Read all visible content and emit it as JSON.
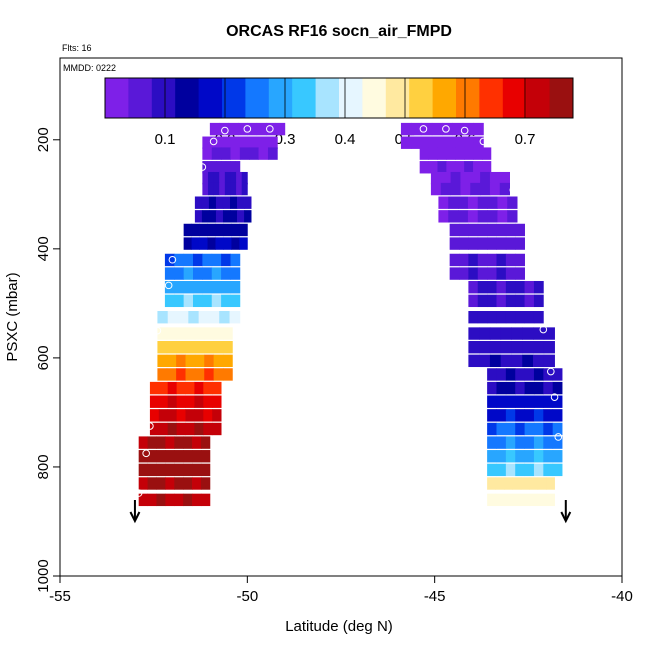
{
  "chart_data": {
    "type": "heatmap",
    "title": "ORCAS RF16 socn_air_FMPD",
    "annotations": {
      "flights": "Flts: 16",
      "date": "MMDD: 0222"
    },
    "xlabel": "Latitude (deg N)",
    "ylabel": "PSXC (mbar)",
    "xlim": [
      -55,
      -40
    ],
    "ylim": [
      1000,
      50
    ],
    "x_ticks": [
      -55,
      -50,
      -45,
      -40
    ],
    "x_tick_labels": [
      "-55",
      "-50",
      "-45",
      "-40"
    ],
    "y_ticks": [
      200,
      400,
      600,
      800,
      1000
    ],
    "y_tick_labels": [
      "200",
      "400",
      "600",
      "800",
      "1000"
    ],
    "colorbar": {
      "range": [
        0,
        0.78
      ],
      "ticks": [
        0.1,
        0.2,
        0.3,
        0.4,
        0.5,
        0.6,
        0.7
      ],
      "tick_labels": [
        "0.1",
        "0.2",
        "0.3",
        "0.4",
        "0.5",
        "0.6",
        "0.7"
      ],
      "colors": [
        "#7e20e8",
        "#5a18d8",
        "#2c0dc3",
        "#00009e",
        "#0008c8",
        "#0038e8",
        "#1478ff",
        "#28a6ff",
        "#38c8ff",
        "#a8e4ff",
        "#e6f6ff",
        "#fffbe0",
        "#ffe9a0",
        "#ffd040",
        "#ffa800",
        "#ff7a00",
        "#ff3000",
        "#e80000",
        "#c40008",
        "#9a1010"
      ]
    },
    "profiles": [
      {
        "name": "southbound profile",
        "bins": [
          {
            "p": 180,
            "lat_min": -51.0,
            "lat_max": -49.0,
            "v": 0.02
          },
          {
            "p": 205,
            "lat_min": -51.2,
            "lat_max": -49.2,
            "v": 0.02
          },
          {
            "p": 225,
            "lat_min": -51.2,
            "lat_max": -49.2,
            "v": 0.05
          },
          {
            "p": 250,
            "lat_min": -51.2,
            "lat_max": -50.2,
            "v": 0.06
          },
          {
            "p": 270,
            "lat_min": -51.2,
            "lat_max": -50.0,
            "v": 0.08
          },
          {
            "p": 290,
            "lat_min": -51.2,
            "lat_max": -50.0,
            "v": 0.09
          },
          {
            "p": 315,
            "lat_min": -51.4,
            "lat_max": -49.9,
            "v": 0.11
          },
          {
            "p": 340,
            "lat_min": -51.4,
            "lat_max": -49.9,
            "v": 0.12
          },
          {
            "p": 365,
            "lat_min": -51.7,
            "lat_max": -50.0,
            "v": 0.14
          },
          {
            "p": 390,
            "lat_min": -51.7,
            "lat_max": -50.0,
            "v": 0.16
          },
          {
            "p": 420,
            "lat_min": -52.2,
            "lat_max": -50.2,
            "v": 0.24
          },
          {
            "p": 445,
            "lat_min": -52.2,
            "lat_max": -50.2,
            "v": 0.27
          },
          {
            "p": 470,
            "lat_min": -52.2,
            "lat_max": -50.2,
            "v": 0.3
          },
          {
            "p": 495,
            "lat_min": -52.2,
            "lat_max": -50.2,
            "v": 0.35
          },
          {
            "p": 525,
            "lat_min": -52.4,
            "lat_max": -50.2,
            "v": 0.39
          },
          {
            "p": 555,
            "lat_min": -52.4,
            "lat_max": -50.4,
            "v": 0.45
          },
          {
            "p": 580,
            "lat_min": -52.4,
            "lat_max": -50.4,
            "v": 0.52
          },
          {
            "p": 605,
            "lat_min": -52.4,
            "lat_max": -50.4,
            "v": 0.58
          },
          {
            "p": 630,
            "lat_min": -52.4,
            "lat_max": -50.4,
            "v": 0.62
          },
          {
            "p": 655,
            "lat_min": -52.6,
            "lat_max": -50.7,
            "v": 0.66
          },
          {
            "p": 680,
            "lat_min": -52.6,
            "lat_max": -50.7,
            "v": 0.69
          },
          {
            "p": 705,
            "lat_min": -52.6,
            "lat_max": -50.7,
            "v": 0.71
          },
          {
            "p": 730,
            "lat_min": -52.6,
            "lat_max": -50.7,
            "v": 0.73
          },
          {
            "p": 755,
            "lat_min": -52.9,
            "lat_max": -51.0,
            "v": 0.75
          },
          {
            "p": 780,
            "lat_min": -52.9,
            "lat_max": -51.0,
            "v": 0.76
          },
          {
            "p": 805,
            "lat_min": -52.9,
            "lat_max": -51.0,
            "v": 0.76
          },
          {
            "p": 830,
            "lat_min": -52.9,
            "lat_max": -51.0,
            "v": 0.75
          },
          {
            "p": 860,
            "lat_min": -52.9,
            "lat_max": -51.0,
            "v": 0.74
          }
        ],
        "points": [
          {
            "lat": -50.6,
            "p": 183
          },
          {
            "lat": -50.0,
            "p": 180
          },
          {
            "lat": -49.4,
            "p": 180
          },
          {
            "lat": -50.9,
            "p": 203
          },
          {
            "lat": -51.2,
            "p": 250
          },
          {
            "lat": -52.0,
            "p": 420
          },
          {
            "lat": -52.1,
            "p": 467
          },
          {
            "lat": -52.4,
            "p": 550
          },
          {
            "lat": -52.6,
            "p": 725
          },
          {
            "lat": -52.7,
            "p": 775
          },
          {
            "lat": -52.9,
            "p": 848
          }
        ]
      },
      {
        "name": "northbound profile",
        "bins": [
          {
            "p": 180,
            "lat_min": -45.9,
            "lat_max": -43.7,
            "v": 0.02
          },
          {
            "p": 205,
            "lat_min": -45.9,
            "lat_max": -43.7,
            "v": 0.02
          },
          {
            "p": 225,
            "lat_min": -45.4,
            "lat_max": -43.5,
            "v": 0.02
          },
          {
            "p": 250,
            "lat_min": -45.4,
            "lat_max": -43.5,
            "v": 0.03
          },
          {
            "p": 270,
            "lat_min": -45.1,
            "lat_max": -43.0,
            "v": 0.03
          },
          {
            "p": 290,
            "lat_min": -45.1,
            "lat_max": -43.0,
            "v": 0.04
          },
          {
            "p": 315,
            "lat_min": -44.9,
            "lat_max": -42.8,
            "v": 0.04
          },
          {
            "p": 340,
            "lat_min": -44.9,
            "lat_max": -42.8,
            "v": 0.05
          },
          {
            "p": 365,
            "lat_min": -44.6,
            "lat_max": -42.6,
            "v": 0.06
          },
          {
            "p": 390,
            "lat_min": -44.6,
            "lat_max": -42.6,
            "v": 0.06
          },
          {
            "p": 420,
            "lat_min": -44.6,
            "lat_max": -42.6,
            "v": 0.07
          },
          {
            "p": 445,
            "lat_min": -44.6,
            "lat_max": -42.6,
            "v": 0.07
          },
          {
            "p": 470,
            "lat_min": -44.1,
            "lat_max": -42.1,
            "v": 0.09
          },
          {
            "p": 495,
            "lat_min": -44.1,
            "lat_max": -42.1,
            "v": 0.09
          },
          {
            "p": 525,
            "lat_min": -44.1,
            "lat_max": -42.1,
            "v": 0.1
          },
          {
            "p": 555,
            "lat_min": -44.1,
            "lat_max": -41.8,
            "v": 0.1
          },
          {
            "p": 580,
            "lat_min": -44.1,
            "lat_max": -41.8,
            "v": 0.1
          },
          {
            "p": 605,
            "lat_min": -44.1,
            "lat_max": -41.8,
            "v": 0.11
          },
          {
            "p": 630,
            "lat_min": -43.6,
            "lat_max": -41.6,
            "v": 0.11
          },
          {
            "p": 655,
            "lat_min": -43.6,
            "lat_max": -41.6,
            "v": 0.12
          },
          {
            "p": 680,
            "lat_min": -43.6,
            "lat_max": -41.6,
            "v": 0.17
          },
          {
            "p": 705,
            "lat_min": -43.6,
            "lat_max": -41.6,
            "v": 0.19
          },
          {
            "p": 730,
            "lat_min": -43.6,
            "lat_max": -41.6,
            "v": 0.24
          },
          {
            "p": 755,
            "lat_min": -43.6,
            "lat_max": -41.6,
            "v": 0.27
          },
          {
            "p": 780,
            "lat_min": -43.6,
            "lat_max": -41.6,
            "v": 0.31
          },
          {
            "p": 805,
            "lat_min": -43.6,
            "lat_max": -41.6,
            "v": 0.34
          },
          {
            "p": 830,
            "lat_min": -43.6,
            "lat_max": -41.8,
            "v": 0.48
          },
          {
            "p": 860,
            "lat_min": -43.6,
            "lat_max": -41.8,
            "v": 0.45
          }
        ],
        "points": [
          {
            "lat": -45.3,
            "p": 180
          },
          {
            "lat": -44.7,
            "p": 180
          },
          {
            "lat": -44.2,
            "p": 183
          },
          {
            "lat": -43.7,
            "p": 203
          },
          {
            "lat": -42.9,
            "p": 292
          },
          {
            "lat": -42.1,
            "p": 548
          },
          {
            "lat": -41.9,
            "p": 625
          },
          {
            "lat": -41.8,
            "p": 672
          },
          {
            "lat": -41.7,
            "p": 745
          }
        ]
      }
    ],
    "arrows": [
      {
        "name": "southbound",
        "lat": -53.0
      },
      {
        "name": "northbound",
        "lat": -41.5
      }
    ]
  }
}
